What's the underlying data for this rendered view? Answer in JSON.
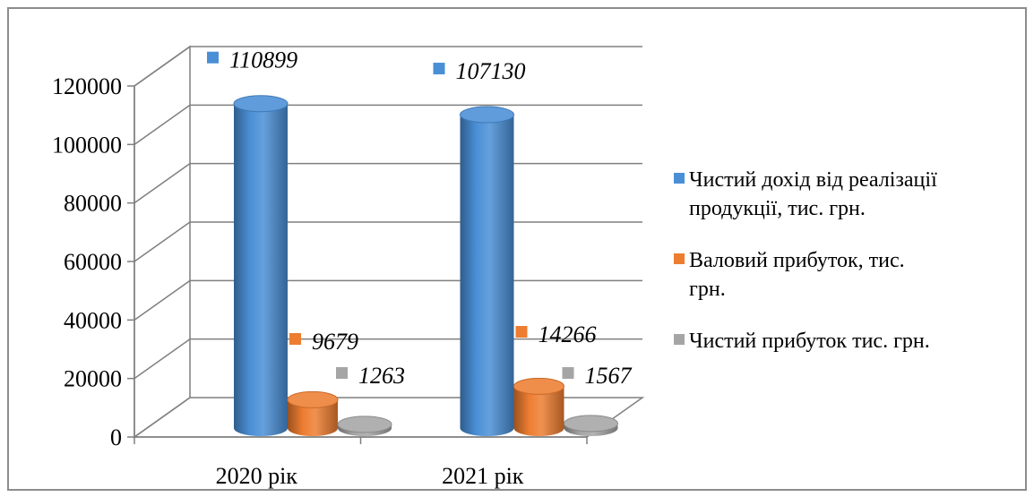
{
  "chart_data": {
    "type": "bar",
    "style": "3d-cylinder",
    "categories": [
      "2020 рік",
      "2021 рік"
    ],
    "series": [
      {
        "name": "Чистий дохід від реалізації продукції, тис. грн.",
        "color": "#4a8fd6",
        "values": [
          110899,
          107130
        ]
      },
      {
        "name": "Валовий прибуток, тис. грн.",
        "color": "#ed7d31",
        "values": [
          9679,
          14266
        ]
      },
      {
        "name": "Чистий прибуток тис. грн.",
        "color": "#a5a5a5",
        "values": [
          1263,
          1567
        ]
      }
    ],
    "y_ticks": [
      "0",
      "20000",
      "40000",
      "60000",
      "80000",
      "100000",
      "120000"
    ],
    "data_labels": [
      [
        "110899",
        "107130"
      ],
      [
        "9679",
        "14266"
      ],
      [
        "1263",
        "1567"
      ]
    ],
    "legend": {
      "position": "right",
      "entries": [
        {
          "lines": [
            "Чистий дохід від реалізації",
            "продукції, тис. грн."
          ],
          "color": "#4a8fd6"
        },
        {
          "lines": [
            "Валовий прибуток, тис.",
            "грн."
          ],
          "color": "#ed7d31"
        },
        {
          "lines": [
            "Чистий прибуток тис. грн."
          ],
          "color": "#a5a5a5"
        }
      ]
    },
    "ylim": [
      0,
      120000
    ],
    "grid": true
  }
}
